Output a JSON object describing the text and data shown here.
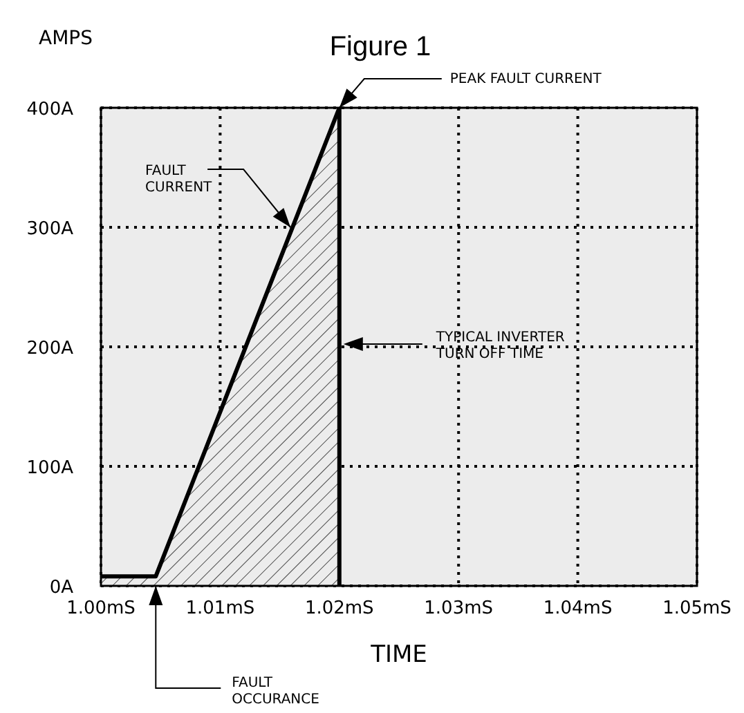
{
  "chart_data": {
    "type": "area",
    "title": "Figure 1",
    "xlabel": "TIME",
    "ylabel": "AMPS",
    "x": [
      1.0,
      1.0046,
      1.02
    ],
    "series": [
      {
        "color": "#000000",
        "values": [
          8,
          8,
          400
        ]
      }
    ],
    "xlim": [
      1.0,
      1.05
    ],
    "ylim": [
      0,
      400
    ],
    "xticks": [
      {
        "value": 1.0,
        "label": "1.00mS"
      },
      {
        "value": 1.01,
        "label": "1.01mS"
      },
      {
        "value": 1.02,
        "label": "1.02mS"
      },
      {
        "value": 1.03,
        "label": "1.03mS"
      },
      {
        "value": 1.04,
        "label": "1.04mS"
      },
      {
        "value": 1.05,
        "label": "1.05mS"
      }
    ],
    "yticks": [
      {
        "value": 0,
        "label": "0A"
      },
      {
        "value": 100,
        "label": "100A"
      },
      {
        "value": 200,
        "label": "200A"
      },
      {
        "value": 300,
        "label": "300A"
      },
      {
        "value": 400,
        "label": "400A"
      }
    ],
    "grid": true,
    "ref_lines": [
      {
        "axis": "x",
        "value": 1.02,
        "label": "TYPICAL INVERTER TURN OFF TIME",
        "color": "#000000"
      }
    ],
    "annotations": [
      {
        "text": "PEAK FAULT CURRENT",
        "x": 1.02,
        "y": 400
      },
      {
        "text": "FAULT CURRENT",
        "x": 1.0159,
        "y": 300
      },
      {
        "text": "FAULT OCCURANCE",
        "x": 1.0046,
        "y": 0
      }
    ]
  }
}
